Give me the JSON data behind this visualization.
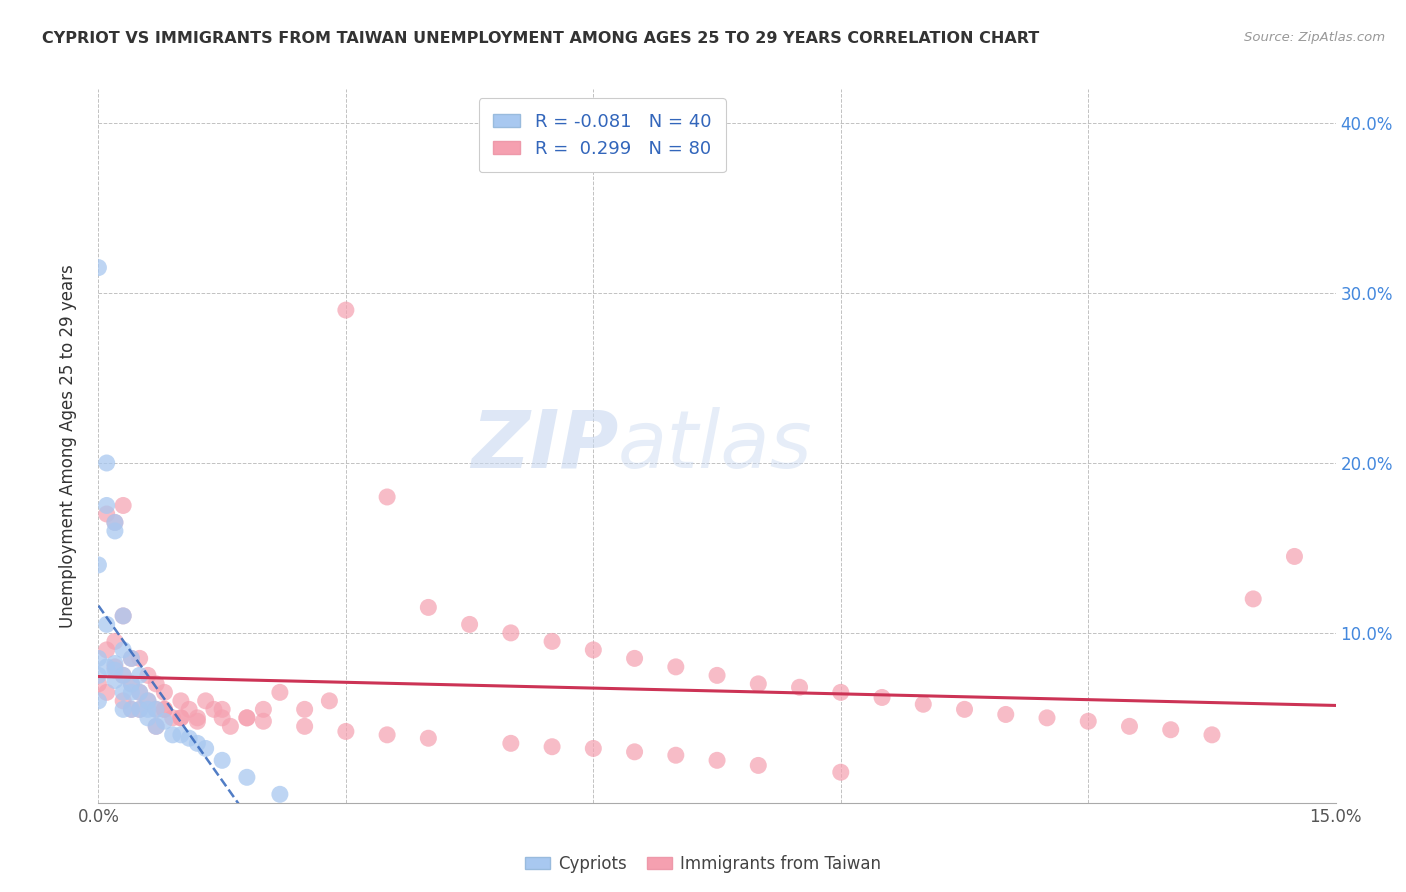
{
  "title": "CYPRIOT VS IMMIGRANTS FROM TAIWAN UNEMPLOYMENT AMONG AGES 25 TO 29 YEARS CORRELATION CHART",
  "source": "Source: ZipAtlas.com",
  "ylabel": "Unemployment Among Ages 25 to 29 years",
  "xlim": [
    0.0,
    0.15
  ],
  "ylim": [
    -0.02,
    0.42
  ],
  "plot_ylim": [
    0.0,
    0.4
  ],
  "legend_r_blue": "-0.081",
  "legend_n_blue": "40",
  "legend_r_pink": "0.299",
  "legend_n_pink": "80",
  "blue_color": "#A8C8F0",
  "pink_color": "#F5A0B0",
  "trendline_blue_color": "#3366BB",
  "trendline_pink_color": "#CC3355",
  "watermark_zip": "ZIP",
  "watermark_atlas": "atlas",
  "cypriots_x": [
    0.0,
    0.0,
    0.0,
    0.0,
    0.0,
    0.001,
    0.001,
    0.001,
    0.001,
    0.002,
    0.002,
    0.002,
    0.002,
    0.002,
    0.003,
    0.003,
    0.003,
    0.003,
    0.003,
    0.004,
    0.004,
    0.004,
    0.004,
    0.005,
    0.005,
    0.005,
    0.006,
    0.006,
    0.006,
    0.007,
    0.007,
    0.008,
    0.009,
    0.01,
    0.011,
    0.012,
    0.013,
    0.015,
    0.018,
    0.022
  ],
  "cypriots_y": [
    0.315,
    0.14,
    0.085,
    0.075,
    0.06,
    0.2,
    0.175,
    0.105,
    0.08,
    0.165,
    0.16,
    0.082,
    0.078,
    0.072,
    0.11,
    0.09,
    0.075,
    0.065,
    0.055,
    0.085,
    0.07,
    0.065,
    0.055,
    0.075,
    0.065,
    0.055,
    0.06,
    0.055,
    0.05,
    0.055,
    0.045,
    0.048,
    0.04,
    0.04,
    0.038,
    0.035,
    0.032,
    0.025,
    0.015,
    0.005
  ],
  "taiwan_x": [
    0.0,
    0.001,
    0.001,
    0.001,
    0.002,
    0.002,
    0.002,
    0.003,
    0.003,
    0.003,
    0.003,
    0.004,
    0.004,
    0.004,
    0.005,
    0.005,
    0.005,
    0.006,
    0.006,
    0.007,
    0.007,
    0.007,
    0.008,
    0.008,
    0.009,
    0.01,
    0.01,
    0.011,
    0.012,
    0.013,
    0.014,
    0.015,
    0.016,
    0.018,
    0.02,
    0.022,
    0.025,
    0.028,
    0.03,
    0.035,
    0.04,
    0.045,
    0.05,
    0.055,
    0.06,
    0.065,
    0.07,
    0.075,
    0.08,
    0.085,
    0.09,
    0.095,
    0.1,
    0.105,
    0.11,
    0.115,
    0.12,
    0.125,
    0.13,
    0.135,
    0.14,
    0.145,
    0.008,
    0.01,
    0.012,
    0.015,
    0.018,
    0.02,
    0.025,
    0.03,
    0.035,
    0.04,
    0.05,
    0.055,
    0.06,
    0.065,
    0.07,
    0.075,
    0.08,
    0.09
  ],
  "taiwan_y": [
    0.07,
    0.17,
    0.09,
    0.065,
    0.165,
    0.095,
    0.08,
    0.175,
    0.11,
    0.075,
    0.06,
    0.085,
    0.07,
    0.055,
    0.085,
    0.065,
    0.055,
    0.075,
    0.06,
    0.07,
    0.055,
    0.045,
    0.065,
    0.055,
    0.05,
    0.06,
    0.05,
    0.055,
    0.05,
    0.06,
    0.055,
    0.05,
    0.045,
    0.05,
    0.055,
    0.065,
    0.055,
    0.06,
    0.29,
    0.18,
    0.115,
    0.105,
    0.1,
    0.095,
    0.09,
    0.085,
    0.08,
    0.075,
    0.07,
    0.068,
    0.065,
    0.062,
    0.058,
    0.055,
    0.052,
    0.05,
    0.048,
    0.045,
    0.043,
    0.04,
    0.12,
    0.145,
    0.055,
    0.05,
    0.048,
    0.055,
    0.05,
    0.048,
    0.045,
    0.042,
    0.04,
    0.038,
    0.035,
    0.033,
    0.032,
    0.03,
    0.028,
    0.025,
    0.022,
    0.018
  ]
}
